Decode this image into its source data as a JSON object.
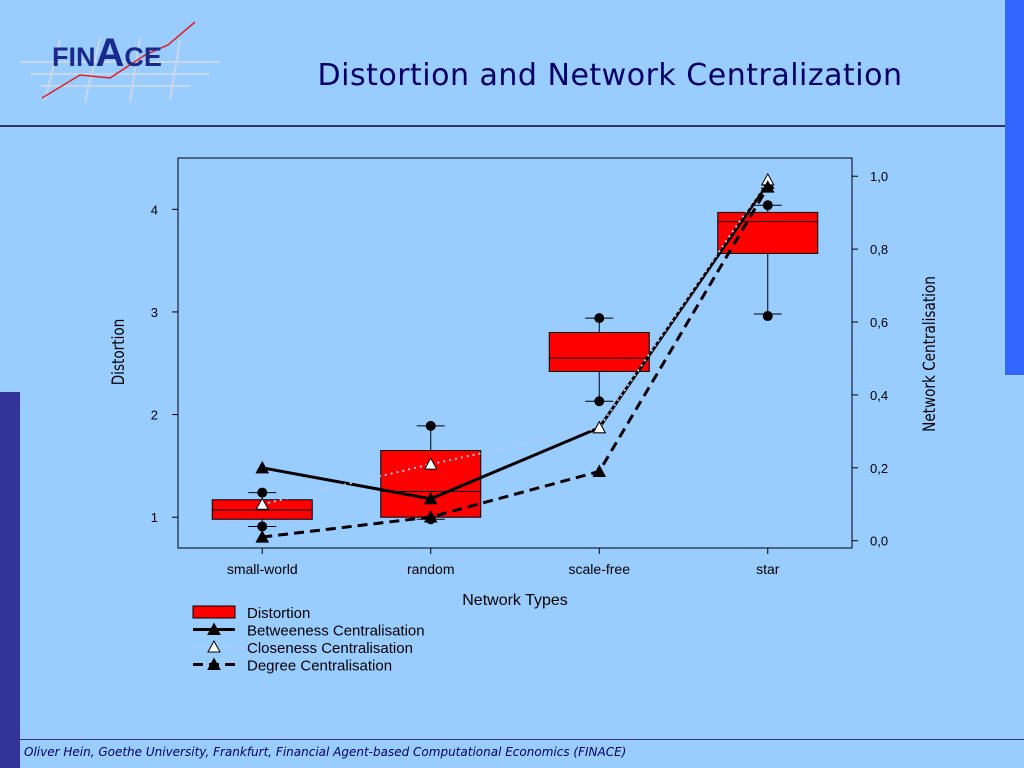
{
  "header": {
    "logo_text_left": "FIN",
    "logo_text_big": "A",
    "logo_text_right": "CE",
    "title": "Distortion and Network Centralization"
  },
  "footer": {
    "text": "Oliver Hein, Goethe University, Frankfurt, Financial Agent-based Computational Economics (FINACE)"
  },
  "colors": {
    "background": "#99ccff",
    "accent_blue": "#3366ff",
    "dark_blue": "#333399",
    "box_fill": "#ff0000"
  },
  "chart_data": {
    "type": "box+line",
    "xlabel": "Network Types",
    "ylabel_left": "Distortion",
    "ylabel_right": "Network Centralisation",
    "categories": [
      "small-world",
      "random",
      "scale-free",
      "star"
    ],
    "left_axis": {
      "ylim": [
        0.7,
        4.5
      ],
      "ticks": [
        "1",
        "2",
        "3",
        "4"
      ]
    },
    "right_axis": {
      "ylim": [
        -0.02,
        1.05
      ],
      "ticks": [
        "0,0",
        "0,2",
        "0,4",
        "0,6",
        "0,8",
        "1,0"
      ]
    },
    "boxes": {
      "name": "Distortion",
      "stats": [
        {
          "q1": 0.98,
          "median": 1.07,
          "q3": 1.17,
          "whisker_low": 0.91,
          "whisker_high": 1.24,
          "outliers": [
            0.91,
            1.24
          ]
        },
        {
          "q1": 1.0,
          "median": 1.25,
          "q3": 1.65,
          "whisker_low": 0.98,
          "whisker_high": 1.89,
          "outliers": [
            0.98,
            1.89
          ]
        },
        {
          "q1": 2.42,
          "median": 2.55,
          "q3": 2.8,
          "whisker_low": 2.13,
          "whisker_high": 2.94,
          "outliers": [
            2.13,
            2.94
          ]
        },
        {
          "q1": 3.57,
          "median": 3.88,
          "q3": 3.97,
          "whisker_low": 2.98,
          "whisker_high": 4.04,
          "outliers": [
            2.96,
            4.04
          ]
        }
      ]
    },
    "series": [
      {
        "name": "Betweeness Centralisation",
        "values": [
          0.2,
          0.115,
          0.31,
          0.98
        ]
      },
      {
        "name": "Closeness Centralisation",
        "values": [
          0.1,
          0.21,
          0.31,
          0.99
        ]
      },
      {
        "name": "Degree Centralisation",
        "values": [
          0.01,
          0.065,
          0.19,
          0.97
        ]
      }
    ],
    "legend": {
      "placement": "bottom-left",
      "entries": [
        "Distortion",
        "Betweeness Centralisation",
        "Closeness Centralisation",
        "Degree Centralisation"
      ]
    }
  }
}
